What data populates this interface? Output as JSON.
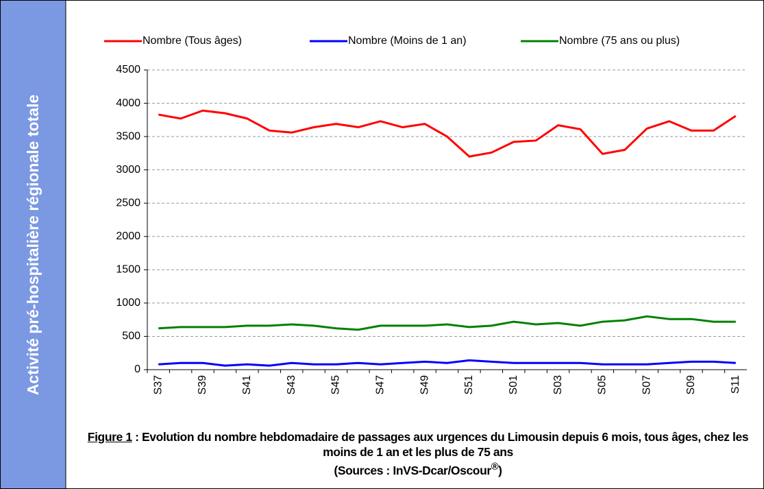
{
  "chart_data": {
    "type": "line",
    "ylabel": "Activité pré-hospitalière régionale totale",
    "categories": [
      "S37",
      null,
      "S39",
      null,
      "S41",
      null,
      "S43",
      null,
      "S45",
      null,
      "S47",
      null,
      "S49",
      null,
      "S51",
      null,
      "S01",
      null,
      "S03",
      null,
      "S05",
      null,
      "S07",
      null,
      "S09",
      null,
      "S11"
    ],
    "series": [
      {
        "name": "Nombre (Tous âges)",
        "color": "#ff0000",
        "values": [
          3830,
          3770,
          3890,
          3850,
          3770,
          3590,
          3560,
          3640,
          3690,
          3640,
          3730,
          3640,
          3690,
          3500,
          3200,
          3260,
          3420,
          3440,
          3670,
          3610,
          3240,
          3300,
          3620,
          3730,
          3590,
          3590,
          3810
        ]
      },
      {
        "name": "Nombre (Moins de 1 an)",
        "color": "#0000ff",
        "values": [
          80,
          100,
          100,
          60,
          80,
          60,
          100,
          80,
          80,
          100,
          80,
          100,
          120,
          100,
          140,
          120,
          100,
          100,
          100,
          100,
          80,
          80,
          80,
          100,
          120,
          120,
          100
        ]
      },
      {
        "name": "Nombre (75 ans ou plus)",
        "color": "#008000",
        "values": [
          620,
          640,
          640,
          640,
          660,
          660,
          680,
          660,
          620,
          600,
          660,
          660,
          660,
          680,
          640,
          660,
          720,
          680,
          700,
          660,
          720,
          740,
          800,
          760,
          760,
          720,
          720
        ]
      }
    ],
    "ylim": [
      0,
      4500
    ],
    "yticks": [
      0,
      500,
      1000,
      1500,
      2000,
      2500,
      3000,
      3500,
      4000,
      4500
    ],
    "grid": true,
    "legend": "top",
    "caption_label": "Figure 1",
    "caption_text": " : Evolution du nombre hebdomadaire de passages aux urgences du Limousin depuis 6 mois, tous âges, chez les moins de 1 an et les plus de 75 ans",
    "sources": "(Sources : InVS-Dcar/Oscour",
    "sources_mark": "®",
    "sources_end": ")"
  }
}
